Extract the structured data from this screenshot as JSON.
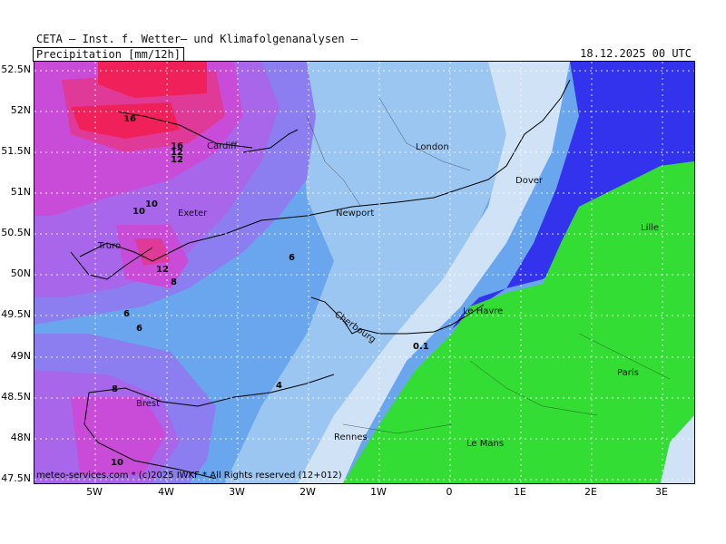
{
  "header": {
    "title": "CETA — Inst. f. Wetter— und Klimafolgenanalysen —",
    "variable": "Precipitation [mm/12h]",
    "datetime": "18.12.2025 00 UTC"
  },
  "map": {
    "lat_labels": [
      "52.5N",
      "52N",
      "51.5N",
      "51N",
      "50.5N",
      "50N",
      "49.5N",
      "49N",
      "48.5N",
      "48N",
      "47.5N"
    ],
    "lon_labels": [
      "5W",
      "4W",
      "3W",
      "2W",
      "1W",
      "0",
      "1E",
      "2E",
      "3E"
    ],
    "cities": [
      "Cardiff",
      "London",
      "Dover",
      "Newport",
      "Exeter",
      "Lille",
      "Truro",
      "Cherbourg",
      "Le Havre",
      "Brest",
      "Paris",
      "Rennes",
      "Le Mans"
    ],
    "contour_labels": [
      "16",
      "16",
      "12",
      "12",
      "10",
      "10",
      "12",
      "8",
      "6",
      "6",
      "6",
      "8",
      "10",
      "4",
      "0.1"
    ],
    "credit": "meteo-services.com * (c)2025 IWKF * All Rights reserved (12+012)",
    "colors": {
      "green": "#33dd33",
      "blue": "#3333ee",
      "pale_blue": "#cfe2f6",
      "light_blue": "#9cc6f2",
      "mid_blue": "#6aa6ee",
      "violet": "#8c7ef0",
      "purple": "#a866ea",
      "magenta": "#c84cd8",
      "pink": "#e03a98",
      "red": "#f0205a"
    }
  }
}
